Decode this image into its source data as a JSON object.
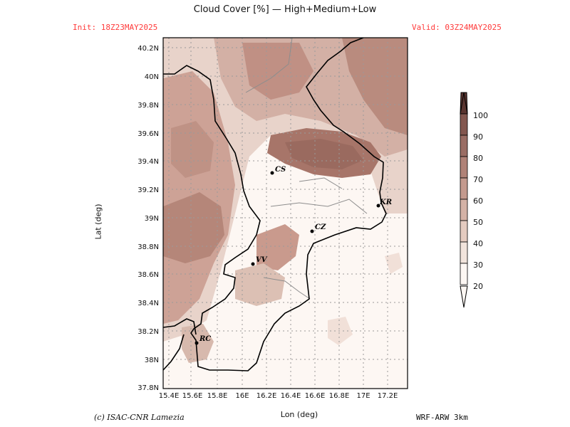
{
  "header": {
    "title": "Cloud Cover [%] — High+Medium+Low",
    "init": "Init: 18Z23MAY2025",
    "valid": "Valid: 03Z24MAY2025"
  },
  "axes": {
    "ylabel": "Lat (deg)",
    "xlabel": "Lon (deg)",
    "lat_ticks": [
      "40.2N",
      "40N",
      "39.8N",
      "39.6N",
      "39.4N",
      "39.2N",
      "39N",
      "38.8N",
      "38.6N",
      "38.4N",
      "38.2N",
      "38N",
      "37.8N"
    ],
    "lon_ticks": [
      "15.4E",
      "15.6E",
      "15.8E",
      "16E",
      "16.2E",
      "16.4E",
      "16.6E",
      "16.8E",
      "17E",
      "17.2E"
    ]
  },
  "cities": [
    {
      "name": "CS"
    },
    {
      "name": "KR"
    },
    {
      "name": "CZ"
    },
    {
      "name": "VV"
    },
    {
      "name": "RC"
    }
  ],
  "colorbar": {
    "labels": [
      "100",
      "90",
      "80",
      "70",
      "60",
      "50",
      "40",
      "30",
      "20"
    ],
    "colors": [
      "#6b4038",
      "#83574f",
      "#9a6d64",
      "#b08277",
      "#c49a8e",
      "#d4b2a6",
      "#e4cbc0",
      "#f1e4dc",
      "#fdf7f3"
    ]
  },
  "footer": {
    "credit": "(c) ISAC-CNR Lamezia",
    "model": "WRF-ARW 3km"
  }
}
